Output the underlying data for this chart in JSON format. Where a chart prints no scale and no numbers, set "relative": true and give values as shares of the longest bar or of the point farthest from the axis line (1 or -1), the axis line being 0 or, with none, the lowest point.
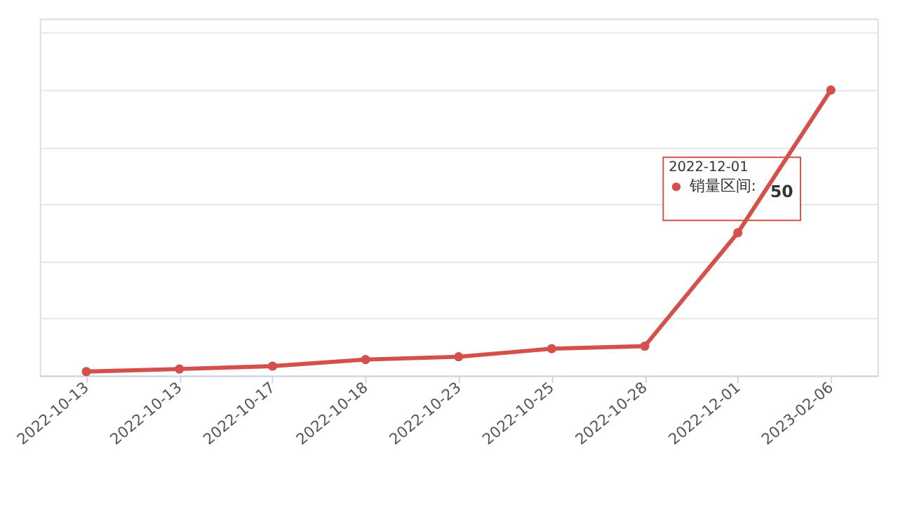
{
  "chart_data": {
    "type": "line",
    "relative": true,
    "categories": [
      "2022-10-13",
      "2022-10-13",
      "2022-10-17",
      "2022-10-18",
      "2022-10-23",
      "2022-10-25",
      "2022-10-28",
      "2022-12-01",
      "2023-02-06"
    ],
    "series": [
      {
        "name": "销量区间:",
        "color": "#d4504b",
        "values": [
          0.014,
          0.023,
          0.033,
          0.056,
          0.066,
          0.094,
          0.103,
          0.5,
          1
        ]
      }
    ],
    "annotations": [
      "50"
    ],
    "grid": "y",
    "marker": "circle",
    "line_style": "solid",
    "legend": "top right"
  }
}
